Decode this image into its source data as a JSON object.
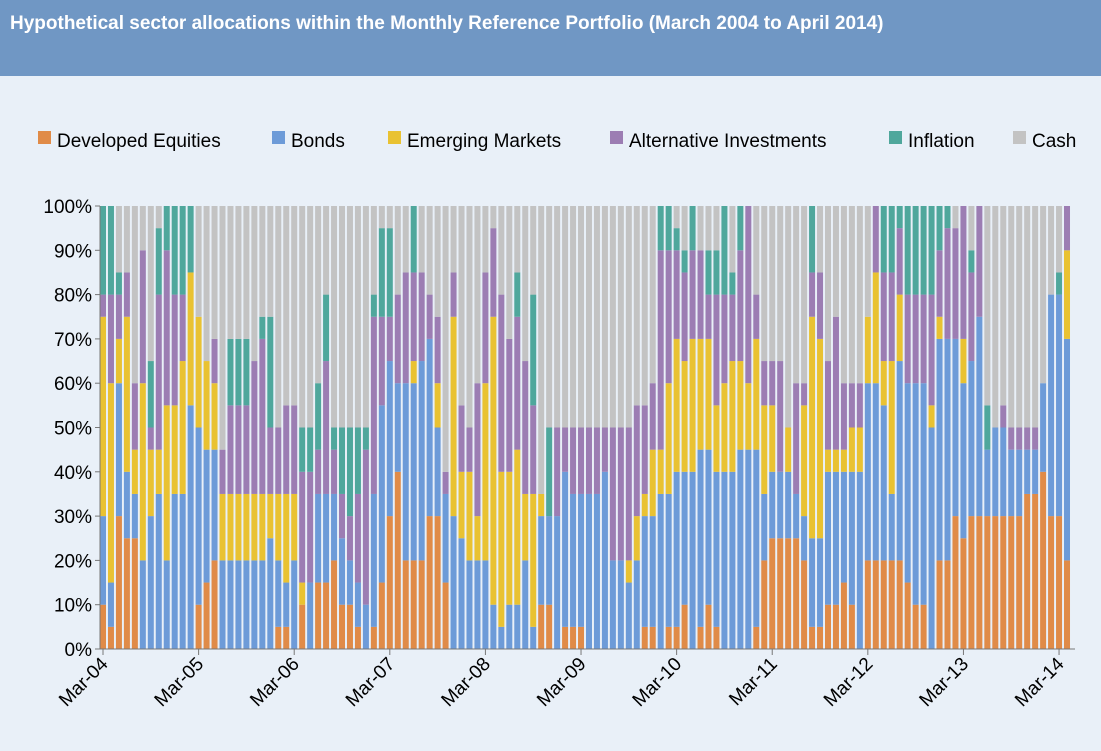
{
  "chart_data": {
    "type": "stacked_bar",
    "title": "Hypothetical sector allocations within the Monthly Reference Portfolio (March 2004 to April 2014)",
    "categories": [
      "Mar-04",
      null,
      null,
      null,
      null,
      null,
      null,
      null,
      null,
      null,
      null,
      null,
      "Mar-05",
      null,
      null,
      null,
      null,
      null,
      null,
      null,
      null,
      null,
      null,
      null,
      "Mar-06",
      null,
      null,
      null,
      null,
      null,
      null,
      null,
      null,
      null,
      null,
      null,
      "Mar-07",
      null,
      null,
      null,
      null,
      null,
      null,
      null,
      null,
      null,
      null,
      null,
      "Mar-08",
      null,
      null,
      null,
      null,
      null,
      null,
      null,
      null,
      null,
      null,
      null,
      "Mar-09",
      null,
      null,
      null,
      null,
      null,
      null,
      null,
      null,
      null,
      null,
      null,
      "Mar-10",
      null,
      null,
      null,
      null,
      null,
      null,
      null,
      null,
      null,
      null,
      null,
      "Mar-11",
      null,
      null,
      null,
      null,
      null,
      null,
      null,
      null,
      null,
      null,
      null,
      "Mar-12",
      null,
      null,
      null,
      null,
      null,
      null,
      null,
      null,
      null,
      null,
      null,
      "Mar-13",
      null,
      null,
      null,
      null,
      null,
      null,
      null,
      null,
      null,
      null,
      null,
      "Mar-14",
      null
    ],
    "series": [
      {
        "name": "Developed Equities",
        "color": "#e08b48",
        "values": [
          10,
          5,
          30,
          25,
          25,
          0,
          0,
          0,
          0,
          0,
          0,
          0,
          10,
          15,
          20,
          0,
          0,
          0,
          0,
          0,
          0,
          0,
          5,
          5,
          0,
          10,
          0,
          15,
          15,
          20,
          10,
          10,
          5,
          0,
          5,
          15,
          30,
          40,
          20,
          20,
          20,
          30,
          30,
          15,
          0,
          0,
          0,
          0,
          0,
          0,
          0,
          0,
          0,
          0,
          0,
          10,
          10,
          0,
          5,
          5,
          5,
          0,
          0,
          0,
          0,
          0,
          0,
          0,
          5,
          5,
          0,
          5,
          5,
          10,
          0,
          5,
          10,
          5,
          0,
          0,
          0,
          0,
          5,
          20,
          25,
          25,
          25,
          25,
          20,
          5,
          5,
          10,
          10,
          15,
          10,
          0,
          20,
          20,
          20,
          20,
          20,
          15,
          10,
          10,
          0,
          20,
          20,
          30,
          25,
          30,
          30,
          30,
          30,
          30,
          30,
          30,
          35,
          35,
          40,
          30,
          30,
          20
        ]
      },
      {
        "name": "Bonds",
        "color": "#6d9bd8",
        "values": [
          20,
          10,
          30,
          15,
          10,
          20,
          30,
          35,
          20,
          35,
          35,
          55,
          40,
          30,
          25,
          20,
          20,
          20,
          20,
          20,
          20,
          25,
          15,
          10,
          20,
          0,
          15,
          20,
          20,
          15,
          15,
          10,
          10,
          10,
          30,
          40,
          35,
          20,
          40,
          40,
          45,
          40,
          20,
          20,
          30,
          25,
          20,
          20,
          20,
          10,
          5,
          10,
          10,
          20,
          5,
          20,
          20,
          30,
          35,
          30,
          30,
          35,
          35,
          40,
          20,
          20,
          15,
          20,
          25,
          25,
          35,
          30,
          35,
          30,
          40,
          40,
          35,
          35,
          40,
          40,
          45,
          45,
          40,
          15,
          15,
          15,
          15,
          10,
          10,
          20,
          20,
          30,
          30,
          25,
          30,
          40,
          40,
          40,
          35,
          15,
          45,
          45,
          50,
          50,
          50,
          50,
          50,
          40,
          35,
          35,
          45,
          15,
          20,
          20,
          15,
          15,
          10,
          10,
          20,
          50,
          50,
          50
        ]
      },
      {
        "name": "Emerging Markets",
        "color": "#e9c232",
        "values": [
          45,
          45,
          10,
          35,
          10,
          40,
          15,
          10,
          35,
          20,
          30,
          30,
          25,
          20,
          15,
          15,
          15,
          15,
          15,
          15,
          15,
          10,
          15,
          20,
          15,
          5,
          0,
          0,
          0,
          0,
          0,
          0,
          0,
          0,
          0,
          0,
          0,
          0,
          0,
          5,
          0,
          0,
          10,
          0,
          45,
          15,
          20,
          10,
          40,
          65,
          35,
          30,
          35,
          15,
          30,
          5,
          0,
          0,
          0,
          0,
          0,
          0,
          0,
          0,
          0,
          0,
          5,
          10,
          5,
          15,
          10,
          25,
          30,
          25,
          30,
          25,
          25,
          15,
          20,
          25,
          20,
          15,
          25,
          20,
          15,
          0,
          10,
          0,
          25,
          50,
          45,
          5,
          5,
          5,
          10,
          10,
          15,
          25,
          10,
          30,
          15,
          0,
          0,
          0,
          5,
          5,
          0,
          0,
          10,
          0,
          0,
          0,
          0,
          0,
          0,
          0,
          0,
          0,
          0,
          0,
          0,
          20
        ]
      },
      {
        "name": "Alternative Investments",
        "color": "#9c7db3",
        "values": [
          5,
          20,
          10,
          10,
          15,
          30,
          5,
          35,
          35,
          25,
          15,
          0,
          0,
          0,
          10,
          10,
          20,
          20,
          20,
          30,
          35,
          15,
          15,
          20,
          20,
          25,
          25,
          10,
          30,
          10,
          10,
          10,
          20,
          35,
          40,
          20,
          10,
          20,
          25,
          20,
          20,
          10,
          15,
          5,
          10,
          15,
          10,
          30,
          25,
          20,
          40,
          30,
          30,
          30,
          20,
          0,
          0,
          20,
          10,
          15,
          15,
          15,
          15,
          10,
          30,
          30,
          30,
          25,
          20,
          15,
          45,
          30,
          20,
          20,
          20,
          20,
          10,
          25,
          20,
          15,
          25,
          40,
          10,
          10,
          10,
          25,
          0,
          25,
          5,
          10,
          15,
          20,
          30,
          15,
          10,
          10,
          0,
          15,
          20,
          20,
          15,
          20,
          20,
          20,
          25,
          15,
          25,
          25,
          30,
          20,
          25,
          0,
          0,
          5,
          5,
          5,
          5,
          5,
          0,
          0,
          0,
          10
        ]
      },
      {
        "name": "Inflation",
        "color": "#4fa79c",
        "values": [
          20,
          20,
          5,
          0,
          0,
          0,
          15,
          15,
          10,
          20,
          20,
          15,
          0,
          0,
          0,
          0,
          15,
          15,
          15,
          0,
          5,
          25,
          0,
          0,
          0,
          10,
          10,
          15,
          15,
          5,
          15,
          20,
          15,
          5,
          5,
          20,
          20,
          0,
          0,
          15,
          0,
          0,
          0,
          0,
          0,
          0,
          0,
          0,
          0,
          0,
          0,
          0,
          10,
          0,
          25,
          0,
          20,
          0,
          0,
          0,
          0,
          0,
          0,
          0,
          0,
          0,
          0,
          0,
          0,
          0,
          10,
          10,
          5,
          5,
          10,
          0,
          10,
          10,
          20,
          5,
          10,
          0,
          0,
          0,
          0,
          0,
          0,
          0,
          0,
          15,
          0,
          0,
          0,
          0,
          0,
          0,
          0,
          0,
          15,
          15,
          5,
          20,
          20,
          20,
          20,
          10,
          5,
          0,
          0,
          5,
          0,
          10,
          0,
          0,
          0,
          0,
          0,
          0,
          0,
          0,
          5,
          0
        ]
      },
      {
        "name": "Cash",
        "color": "#c3c3c3",
        "values": [
          0,
          0,
          15,
          15,
          40,
          10,
          35,
          5,
          0,
          0,
          0,
          0,
          25,
          35,
          30,
          55,
          30,
          30,
          30,
          35,
          25,
          25,
          50,
          45,
          45,
          50,
          50,
          40,
          20,
          50,
          50,
          50,
          50,
          50,
          20,
          5,
          5,
          20,
          15,
          0,
          15,
          20,
          25,
          60,
          15,
          45,
          50,
          40,
          15,
          5,
          20,
          30,
          15,
          35,
          20,
          65,
          50,
          50,
          50,
          50,
          50,
          50,
          50,
          50,
          50,
          50,
          50,
          45,
          45,
          40,
          0,
          0,
          5,
          10,
          0,
          10,
          10,
          10,
          0,
          15,
          0,
          0,
          20,
          35,
          35,
          35,
          50,
          40,
          40,
          0,
          15,
          35,
          25,
          40,
          40,
          40,
          25,
          0,
          0,
          0,
          0,
          0,
          0,
          0,
          0,
          0,
          0,
          5,
          0,
          10,
          0,
          45,
          50,
          45,
          50,
          50,
          50,
          50,
          40,
          20,
          15,
          0
        ]
      }
    ],
    "ylim": [
      0,
      100
    ],
    "yticks": [
      {
        "value": 0,
        "label": "0%"
      },
      {
        "value": 10,
        "label": "10%"
      },
      {
        "value": 20,
        "label": "20%"
      },
      {
        "value": 30,
        "label": "30%"
      },
      {
        "value": 40,
        "label": "40%"
      },
      {
        "value": 50,
        "label": "50%"
      },
      {
        "value": 60,
        "label": "60%"
      },
      {
        "value": 70,
        "label": "70%"
      },
      {
        "value": 80,
        "label": "80%"
      },
      {
        "value": 90,
        "label": "90%"
      },
      {
        "value": 100,
        "label": "100%"
      }
    ],
    "legend": "top"
  }
}
